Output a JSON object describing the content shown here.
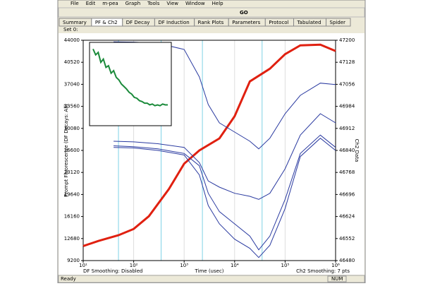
{
  "menu": [
    "File",
    "Edit",
    "m-pea",
    "Graph",
    "Tools",
    "View",
    "Window",
    "Help"
  ],
  "toolbar": {
    "go": "GO"
  },
  "tabs": [
    "Summary",
    "PF & Ch2",
    "DF Decay",
    "DF Induction",
    "Rank Plots",
    "Parameters",
    "Protocol",
    "Tabulated",
    "Spider"
  ],
  "active_tab": 1,
  "set_label": "Set 0:",
  "plot": {
    "type": "line",
    "xlog": true,
    "grid": true,
    "ylabel": "Prompt Fluorescence (DF Decays: All)",
    "y2label": "Ch2 Data",
    "xlabel": "Time (usec)",
    "left_note": "DF Smoothing: Disabled",
    "right_note": "Ch2 Smoothing: 7 pts",
    "xlim": [
      10,
      1000000
    ],
    "xticks": [
      {
        "value": 10,
        "label": "10¹"
      },
      {
        "value": 100,
        "label": "10²"
      },
      {
        "value": 1000,
        "label": "10³"
      },
      {
        "value": 10000,
        "label": "10⁴"
      },
      {
        "value": 100000,
        "label": "10⁵"
      },
      {
        "value": 1000000,
        "label": "10⁶"
      }
    ],
    "ylim": [
      9200,
      44000
    ],
    "yticks": [
      9200,
      12680,
      16160,
      19640,
      23120,
      26600,
      30080,
      33560,
      37040,
      40520,
      44000
    ],
    "y2lim": [
      46480,
      47200
    ],
    "y2ticks": [
      46480,
      46552,
      46624,
      46696,
      46768,
      46840,
      46912,
      46984,
      47056,
      47128,
      47200
    ],
    "cursor_color": "#7fd3e6",
    "cursors": [
      50,
      350,
      2300,
      35000
    ],
    "series": [
      {
        "color": "#e02010",
        "x": [
          10,
          20,
          50,
          100,
          200,
          500,
          1000,
          2000,
          5000,
          10000,
          20000,
          50000,
          100000,
          200000,
          500000,
          1000000
        ],
        "values": [
          11500,
          12300,
          13200,
          14200,
          16200,
          20500,
          24500,
          26600,
          28500,
          32000,
          37500,
          39500,
          41800,
          43200,
          43300,
          42300
        ]
      },
      {
        "color": "#2a3aa0",
        "axis": "y2",
        "x": [
          40,
          100,
          300,
          1000,
          2000,
          3000,
          5000,
          10000,
          20000,
          30000,
          50000,
          100000,
          200000,
          500000,
          1000000
        ],
        "values": [
          46855,
          46852,
          46845,
          46830,
          46790,
          46700,
          46640,
          46600,
          46560,
          46515,
          46560,
          46680,
          46830,
          46890,
          46850
        ]
      },
      {
        "color": "#2a3aa0",
        "axis": "y2",
        "x": [
          40,
          100,
          300,
          1000,
          2000,
          3000,
          5000,
          10000,
          20000,
          30000,
          50000,
          100000,
          200000,
          500000,
          1000000
        ],
        "values": [
          47195,
          47194,
          47190,
          47170,
          47080,
          46990,
          46930,
          46900,
          46870,
          46845,
          46880,
          46960,
          47020,
          47060,
          47055
        ]
      },
      {
        "color": "#2a3aa0",
        "axis": "y2",
        "x": [
          40,
          100,
          300,
          1000,
          2000,
          3000,
          5000,
          10000,
          20000,
          30000,
          50000,
          100000,
          200000,
          500000,
          1000000
        ],
        "values": [
          46870,
          46868,
          46862,
          46850,
          46800,
          46740,
          46720,
          46700,
          46690,
          46680,
          46700,
          46780,
          46890,
          46960,
          46930
        ]
      },
      {
        "color": "#2a3aa0",
        "axis": "y2",
        "x": [
          40,
          100,
          300,
          1000,
          2000,
          3000,
          5000,
          10000,
          20000,
          30000,
          50000,
          100000,
          200000,
          500000,
          1000000
        ],
        "values": [
          46850,
          46848,
          46840,
          46825,
          46760,
          46660,
          46600,
          46550,
          46520,
          46490,
          46530,
          46650,
          46820,
          46880,
          46840
        ]
      }
    ],
    "inset": {
      "color": "#1a8a3a",
      "ylim": [
        0,
        100
      ],
      "values": [
        92,
        85,
        88,
        76,
        80,
        70,
        72,
        63,
        66,
        58,
        55,
        50,
        47,
        44,
        40,
        38,
        34,
        33,
        30,
        29,
        27,
        27,
        25,
        26,
        24,
        25,
        24,
        26,
        25,
        25
      ]
    }
  },
  "status": {
    "left": "Ready",
    "num": "NUM"
  }
}
